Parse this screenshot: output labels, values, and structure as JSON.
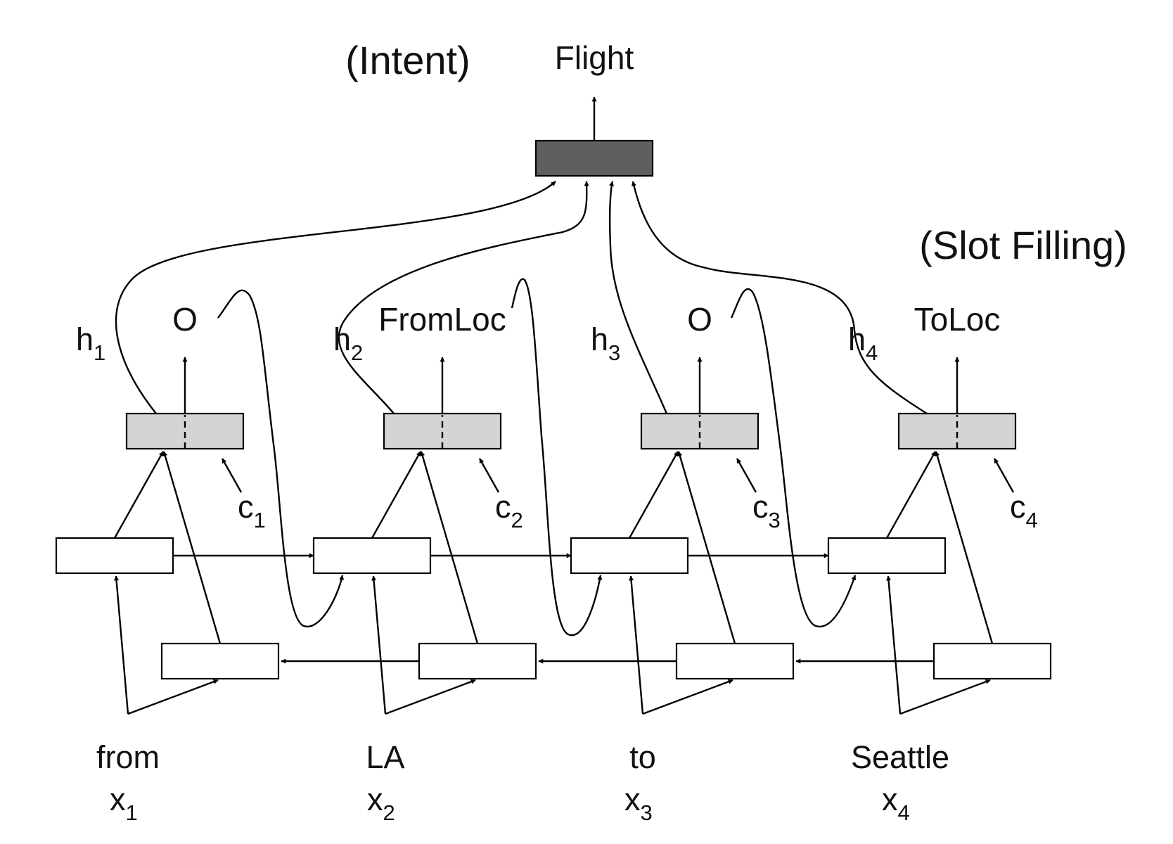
{
  "intent": {
    "caption": "(Intent)",
    "label": "Flight"
  },
  "slot_caption": "(Slot Filling)",
  "colors": {
    "intent_box": "#5f5f5f",
    "decoder_box": "#d4d4d4",
    "encoder_box": "#ffffff",
    "lines": "#000000"
  },
  "steps": [
    {
      "h": "h",
      "h_sub": "1",
      "slot": "O",
      "c": "c",
      "c_sub": "1",
      "word": "from",
      "x": "x",
      "x_sub": "1"
    },
    {
      "h": "h",
      "h_sub": "2",
      "slot": "FromLoc",
      "c": "c",
      "c_sub": "2",
      "word": "LA",
      "x": "x",
      "x_sub": "2"
    },
    {
      "h": "h",
      "h_sub": "3",
      "slot": "O",
      "c": "c",
      "c_sub": "3",
      "word": "to",
      "x": "x",
      "x_sub": "3"
    },
    {
      "h": "h",
      "h_sub": "4",
      "slot": "ToLoc",
      "c": "c",
      "c_sub": "4",
      "word": "Seattle",
      "x": "x",
      "x_sub": "4"
    }
  ]
}
